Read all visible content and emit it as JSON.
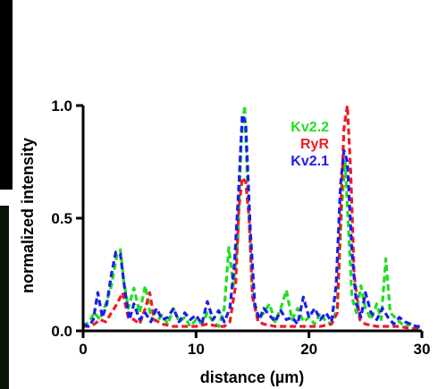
{
  "chart_data": {
    "type": "line",
    "xlabel": "distance (µm)",
    "ylabel": "normalized intensity",
    "xlim": [
      0,
      30
    ],
    "ylim": [
      0,
      1.0
    ],
    "xticks": [
      0,
      10,
      20,
      30
    ],
    "xtick_labels": [
      "0",
      "10",
      "20",
      "30"
    ],
    "yticks": [
      0,
      0.5,
      1.0
    ],
    "ytick_labels": [
      "0.0",
      "0.5",
      "1.0"
    ],
    "grid": false,
    "legend_position": "top-right",
    "line_style": "dashed",
    "series": [
      {
        "name": "Kv2.2",
        "color": "#22dd22",
        "x": [
          0,
          0.5,
          1.0,
          1.5,
          2.0,
          2.5,
          3.0,
          3.3,
          3.6,
          4.0,
          4.5,
          5.0,
          5.5,
          6.0,
          6.5,
          7.0,
          7.5,
          8.0,
          8.5,
          9.0,
          9.5,
          10.0,
          10.5,
          11.0,
          11.5,
          12.0,
          12.5,
          12.9,
          13.3,
          13.7,
          14.0,
          14.3,
          14.6,
          15.0,
          15.5,
          16.0,
          16.5,
          17.0,
          17.5,
          18.0,
          18.5,
          19.0,
          19.5,
          20.0,
          20.5,
          21.0,
          21.5,
          22.0,
          22.5,
          22.9,
          23.2,
          23.5,
          23.8,
          24.2,
          24.6,
          25.0,
          25.5,
          26.0,
          26.4,
          26.8,
          27.2,
          27.6,
          28.0,
          28.5,
          29.0,
          29.5,
          30.0
        ],
        "values": [
          0.02,
          0.04,
          0.08,
          0.05,
          0.12,
          0.2,
          0.34,
          0.36,
          0.22,
          0.1,
          0.19,
          0.08,
          0.2,
          0.06,
          0.04,
          0.07,
          0.03,
          0.1,
          0.04,
          0.06,
          0.02,
          0.05,
          0.03,
          0.08,
          0.04,
          0.02,
          0.1,
          0.37,
          0.2,
          0.4,
          0.85,
          1.0,
          0.6,
          0.15,
          0.05,
          0.08,
          0.12,
          0.04,
          0.1,
          0.18,
          0.05,
          0.1,
          0.04,
          0.06,
          0.03,
          0.08,
          0.04,
          0.03,
          0.1,
          0.55,
          0.75,
          0.45,
          0.15,
          0.08,
          0.2,
          0.1,
          0.05,
          0.12,
          0.05,
          0.32,
          0.08,
          0.06,
          0.04,
          0.02,
          0.03,
          0.01,
          0.02
        ]
      },
      {
        "name": "RyR",
        "color": "#ee1c24",
        "x": [
          0,
          0.5,
          1.0,
          1.5,
          2.0,
          2.5,
          3.0,
          3.5,
          4.0,
          4.5,
          5.0,
          5.5,
          5.9,
          6.3,
          7.0,
          8.0,
          9.0,
          10.0,
          11.0,
          12.0,
          12.5,
          13.0,
          13.5,
          13.8,
          14.1,
          14.4,
          14.7,
          15.0,
          15.5,
          16.0,
          17.0,
          18.0,
          19.0,
          20.0,
          21.0,
          22.0,
          22.5,
          22.8,
          23.1,
          23.4,
          23.7,
          24.0,
          24.5,
          25.0,
          26.0,
          27.0,
          28.0,
          29.0,
          30.0
        ],
        "values": [
          0.02,
          0.02,
          0.03,
          0.05,
          0.04,
          0.08,
          0.12,
          0.17,
          0.06,
          0.05,
          0.03,
          0.1,
          0.17,
          0.05,
          0.03,
          0.02,
          0.02,
          0.02,
          0.03,
          0.02,
          0.02,
          0.04,
          0.2,
          0.55,
          0.68,
          0.66,
          0.5,
          0.15,
          0.04,
          0.03,
          0.02,
          0.02,
          0.02,
          0.02,
          0.02,
          0.03,
          0.08,
          0.5,
          0.9,
          1.0,
          0.7,
          0.25,
          0.05,
          0.03,
          0.02,
          0.02,
          0.02,
          0.01,
          0.01
        ]
      },
      {
        "name": "Kv2.1",
        "color": "#1c1cee",
        "x": [
          0,
          0.5,
          0.9,
          1.3,
          1.7,
          2.1,
          2.5,
          2.9,
          3.3,
          3.7,
          4.1,
          4.5,
          5.0,
          5.5,
          6.0,
          6.5,
          7.0,
          7.5,
          8.0,
          8.5,
          9.0,
          9.5,
          10.0,
          10.5,
          11.0,
          11.5,
          12.0,
          12.5,
          13.0,
          13.4,
          13.8,
          14.1,
          14.4,
          14.8,
          15.2,
          15.6,
          16.0,
          16.5,
          17.0,
          17.5,
          18.0,
          18.5,
          19.0,
          19.5,
          20.0,
          20.5,
          21.0,
          21.5,
          22.0,
          22.4,
          22.8,
          23.1,
          23.4,
          23.8,
          24.2,
          24.6,
          25.0,
          25.5,
          26.0,
          26.5,
          27.0,
          27.5,
          28.0,
          28.5,
          29.0,
          29.5,
          30.0
        ],
        "values": [
          0.03,
          0.02,
          0.05,
          0.17,
          0.06,
          0.12,
          0.25,
          0.35,
          0.34,
          0.18,
          0.05,
          0.12,
          0.05,
          0.08,
          0.04,
          0.1,
          0.05,
          0.06,
          0.1,
          0.04,
          0.08,
          0.05,
          0.07,
          0.03,
          0.13,
          0.05,
          0.09,
          0.04,
          0.1,
          0.3,
          0.65,
          0.96,
          0.92,
          0.45,
          0.12,
          0.05,
          0.1,
          0.07,
          0.04,
          0.09,
          0.05,
          0.06,
          0.03,
          0.15,
          0.06,
          0.1,
          0.05,
          0.08,
          0.04,
          0.2,
          0.65,
          0.8,
          0.75,
          0.35,
          0.12,
          0.06,
          0.17,
          0.08,
          0.05,
          0.1,
          0.06,
          0.03,
          0.06,
          0.04,
          0.03,
          0.02,
          0.02
        ]
      }
    ]
  }
}
